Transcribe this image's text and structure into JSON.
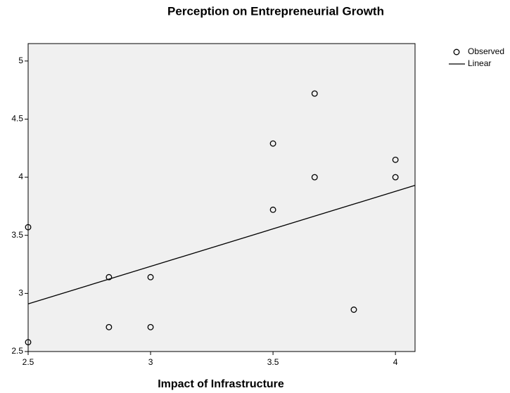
{
  "chart_data": {
    "type": "scatter",
    "title": "Perception on Entrepreneurial Growth",
    "x_label": "Impact of Infrastructure",
    "series": [
      {
        "name": "Observed",
        "type": "scatter",
        "color": "#000000",
        "x": [
          2.5,
          2.5,
          2.83,
          2.83,
          3,
          3,
          3.5,
          3.5,
          3.67,
          3.67,
          3.83,
          4,
          4
        ],
        "values": [
          2.58,
          3.57,
          3.14,
          2.71,
          3.14,
          2.71,
          4.29,
          3.72,
          4.72,
          4.0,
          2.86,
          4.15,
          4.0
        ]
      },
      {
        "name": "Linear",
        "type": "line",
        "color": "#000000",
        "x": [
          2.5,
          4.08
        ],
        "values": [
          2.91,
          3.93
        ]
      }
    ],
    "xlim": [
      2.5,
      4.08
    ],
    "ylim": [
      2.5,
      5.15
    ],
    "xticks": [
      2.5,
      3,
      3.5,
      4
    ],
    "yticks": [
      2.5,
      3,
      3.5,
      4,
      4.5,
      5
    ],
    "legend": "right",
    "background": "#f0f0f0",
    "grid": false
  }
}
